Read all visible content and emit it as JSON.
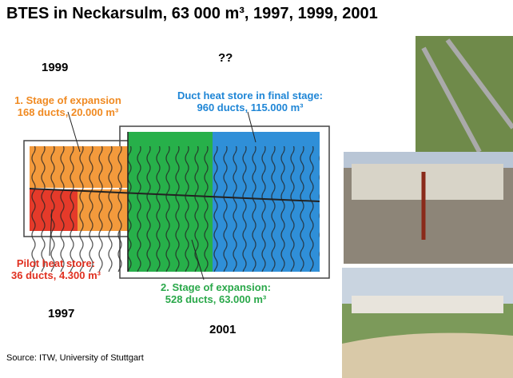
{
  "title": "BTES in Neckarsulm, 63 000 m³, 1997, 1999, 2001",
  "labels": {
    "year_1999": "1999",
    "unknown": "??",
    "stage1": {
      "line1": "1. Stage of expansion",
      "line2": "168 ducts, 20.000 m³"
    },
    "final": {
      "line1": "Duct heat store in final stage:",
      "line2": "960 ducts, 115.000 m³"
    },
    "pilot": {
      "line1": "Pilot heat store:",
      "line2": "36 ducts, 4.300 m³"
    },
    "stage2": {
      "line1": "2. Stage of expansion:",
      "line2": "528 ducts, 63.000 m³"
    },
    "year_1997": "1997",
    "year_2001": "2001"
  },
  "source": "Source: ITW, University of Stuttgart"
}
